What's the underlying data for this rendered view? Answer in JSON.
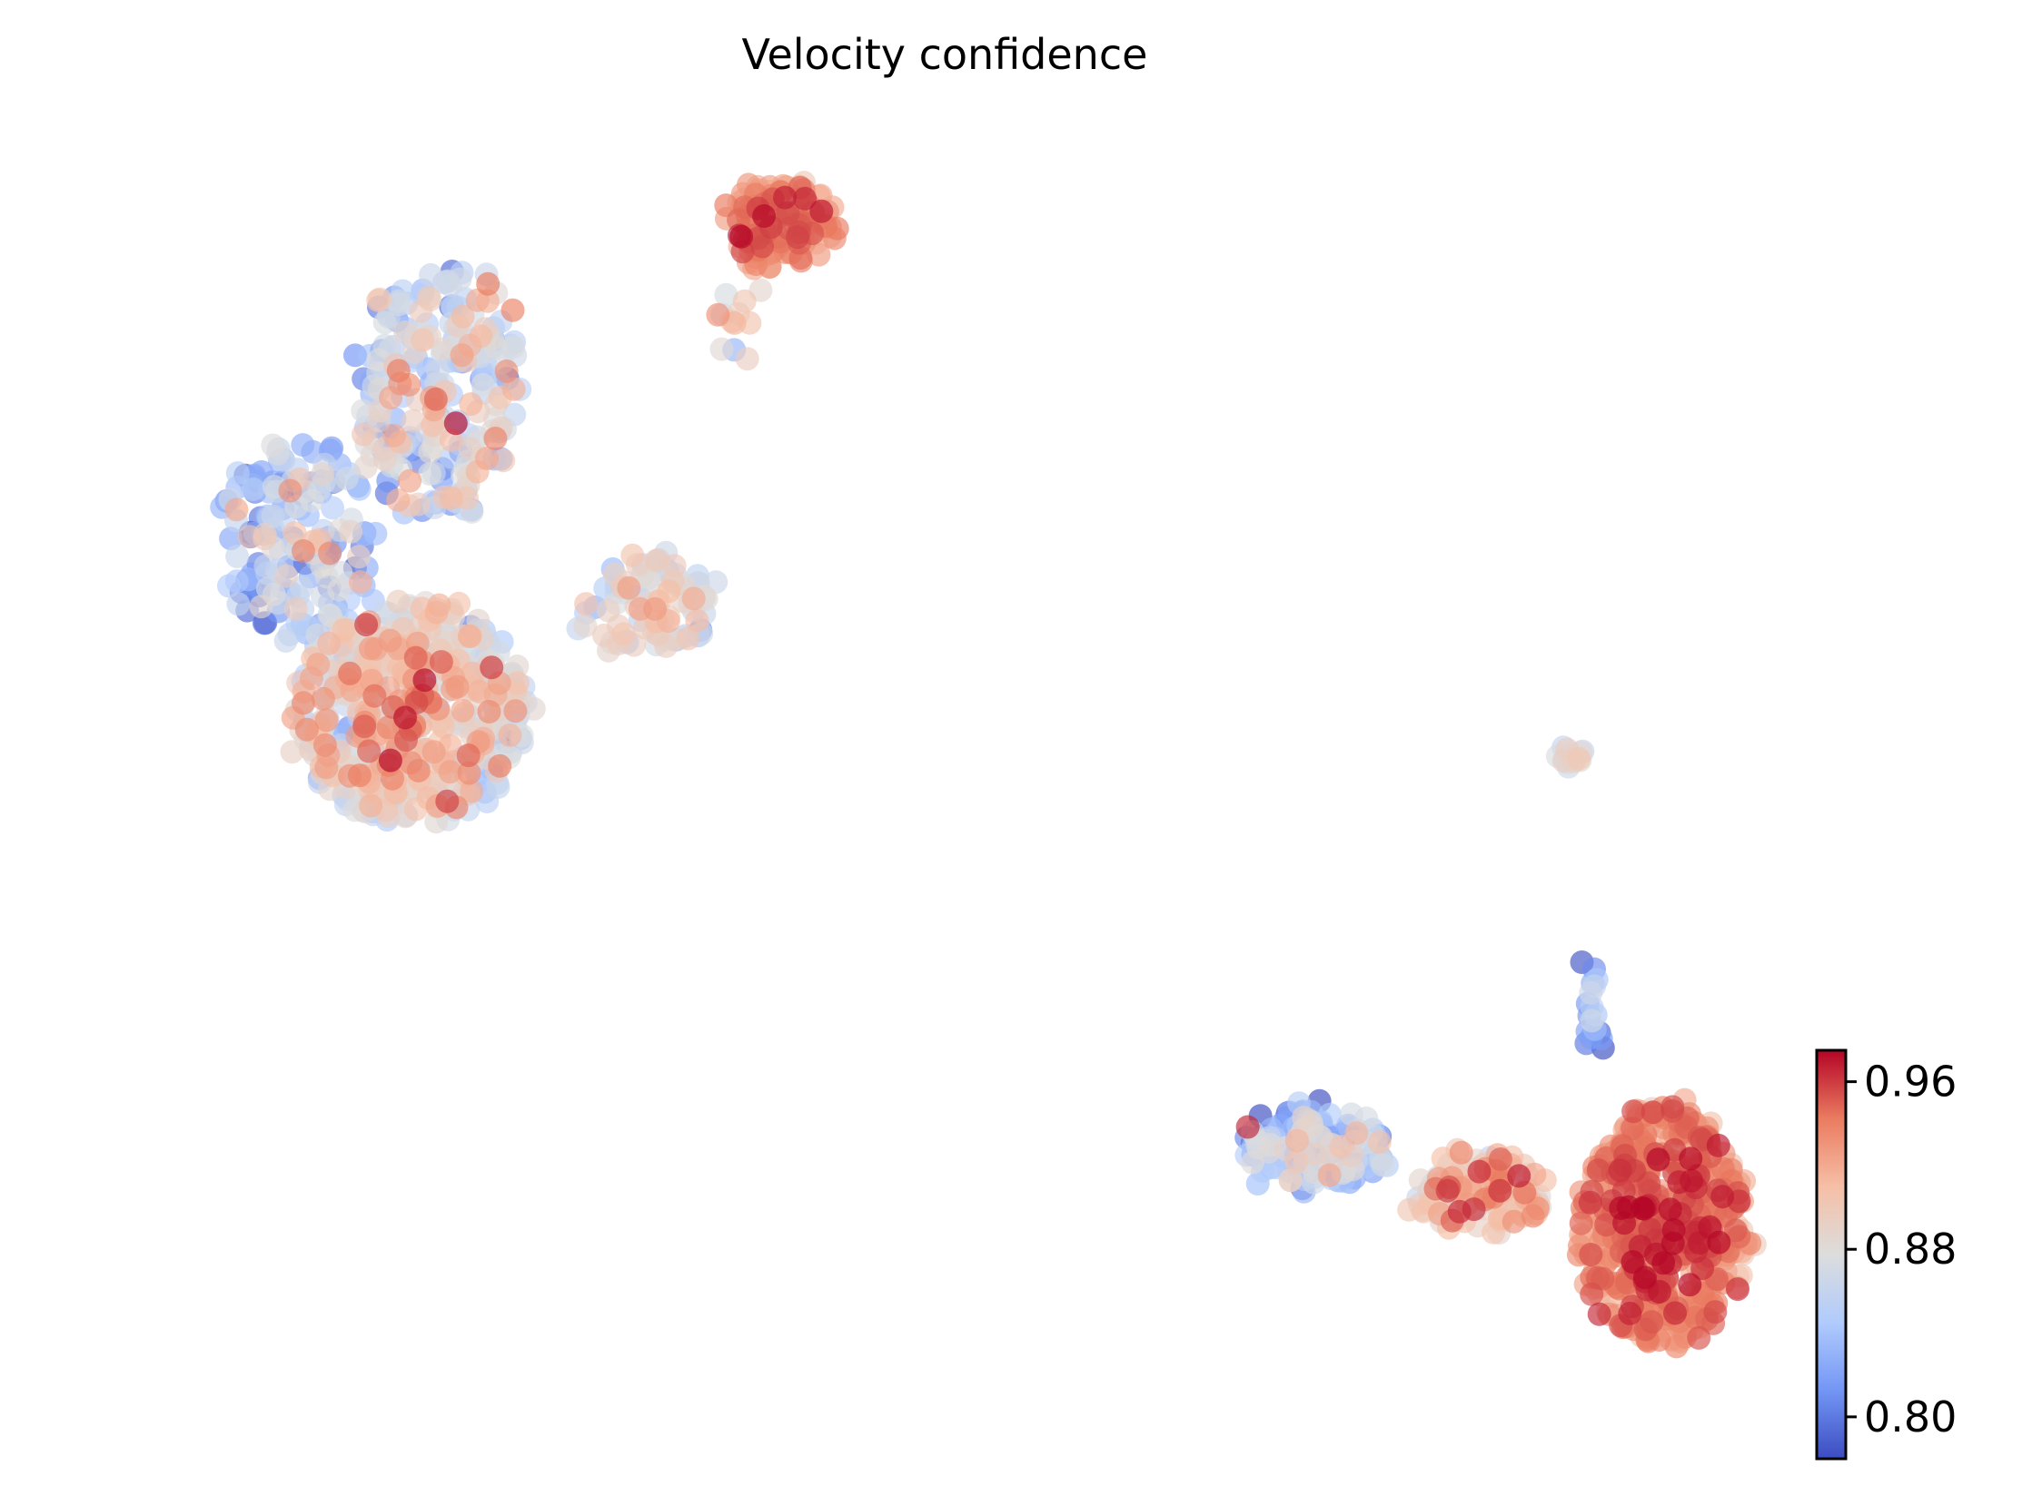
{
  "chart_data": {
    "type": "scatter",
    "title": "Velocity confidence",
    "xlabel": "",
    "ylabel": "",
    "axes_visible": false,
    "grid": false,
    "colormap": "coolwarm",
    "colormap_stops": [
      "#3b4cc0",
      "#7396f5",
      "#b0cbfc",
      "#dcdddd",
      "#f6bfa6",
      "#ea7b60",
      "#b40426"
    ],
    "colorbar": {
      "placement": "bottom-right",
      "range": [
        0.78,
        0.975
      ],
      "ticks": [
        0.8,
        0.88,
        0.96
      ],
      "tick_labels": [
        "0.80",
        "0.88",
        "0.96"
      ]
    },
    "point_alpha": 0.65,
    "approximate": true,
    "clusters": [
      {
        "cx": 3.3,
        "cy": 7.7,
        "rx": 1.25,
        "ry": 1.0,
        "n": 520,
        "mean": 0.905,
        "sd": 0.03
      },
      {
        "cx": 3.6,
        "cy": 10.7,
        "rx": 0.85,
        "ry": 1.2,
        "n": 230,
        "mean": 0.885,
        "sd": 0.035
      },
      {
        "cx": 2.1,
        "cy": 9.3,
        "rx": 0.8,
        "ry": 0.9,
        "n": 170,
        "mean": 0.86,
        "sd": 0.035
      },
      {
        "cx": 5.8,
        "cy": 8.7,
        "rx": 0.75,
        "ry": 0.45,
        "n": 90,
        "mean": 0.9,
        "sd": 0.025
      },
      {
        "cx": 7.2,
        "cy": 12.2,
        "rx": 0.55,
        "ry": 0.4,
        "n": 120,
        "mean": 0.955,
        "sd": 0.015
      },
      {
        "cx": 6.8,
        "cy": 11.3,
        "rx": 0.25,
        "ry": 0.35,
        "n": 12,
        "mean": 0.905,
        "sd": 0.02
      },
      {
        "cx": 15.6,
        "cy": 7.3,
        "rx": 0.12,
        "ry": 0.1,
        "n": 14,
        "mean": 0.895,
        "sd": 0.02
      },
      {
        "cx": 15.8,
        "cy": 5.0,
        "rx": 0.12,
        "ry": 0.45,
        "n": 18,
        "mean": 0.84,
        "sd": 0.02
      },
      {
        "cx": 12.9,
        "cy": 3.7,
        "rx": 0.75,
        "ry": 0.35,
        "n": 150,
        "mean": 0.865,
        "sd": 0.03
      },
      {
        "cx": 14.6,
        "cy": 3.3,
        "rx": 0.75,
        "ry": 0.35,
        "n": 120,
        "mean": 0.93,
        "sd": 0.025
      },
      {
        "cx": 16.55,
        "cy": 3.0,
        "rx": 0.9,
        "ry": 1.1,
        "n": 560,
        "mean": 0.955,
        "sd": 0.018
      }
    ]
  }
}
